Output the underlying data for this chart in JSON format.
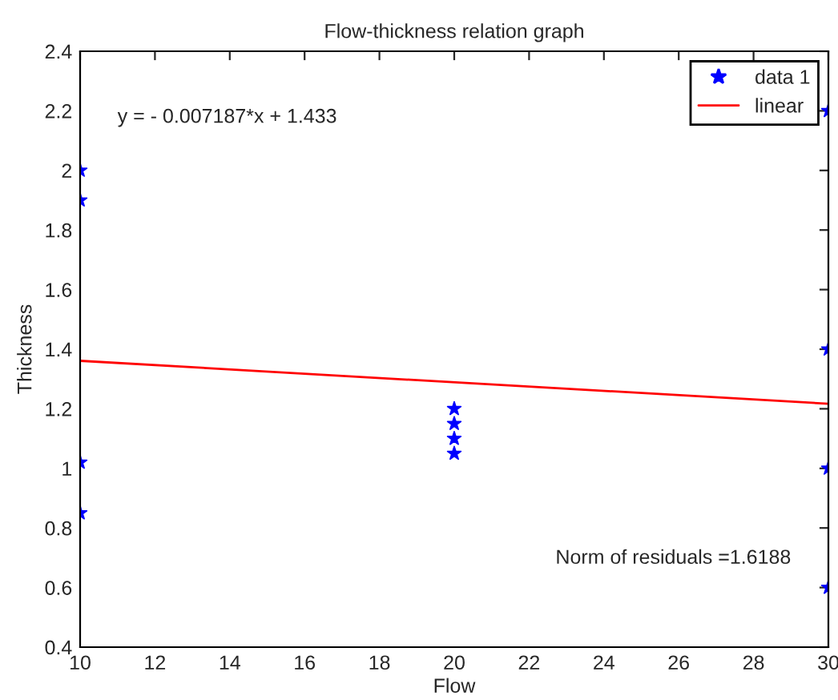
{
  "chart_data": {
    "type": "scatter",
    "title": "Flow-thickness relation graph",
    "xlabel": "Flow",
    "ylabel": "Thickness",
    "series": [
      {
        "name": "data 1",
        "color": "#0000ff",
        "marker": "star",
        "x": [
          10,
          10,
          10,
          10,
          20,
          20,
          20,
          20,
          30,
          30,
          30,
          30
        ],
        "values": [
          2.0,
          1.9,
          1.02,
          0.85,
          1.2,
          1.15,
          1.1,
          1.05,
          2.2,
          1.4,
          1.0,
          0.6
        ]
      },
      {
        "name": "linear",
        "type": "line",
        "color": "#ff0000",
        "marker": "none",
        "line_style": "solid",
        "x": [
          10,
          30
        ],
        "values": [
          1.361,
          1.217
        ]
      }
    ],
    "annotations": [
      "y = - 0.007187*x + 1.433",
      "Norm of residuals =1.6188"
    ],
    "xlim": [
      10,
      30
    ],
    "xticks": [
      10,
      12,
      14,
      16,
      18,
      20,
      22,
      24,
      26,
      28,
      30
    ],
    "ylim": [
      0.4,
      2.4
    ],
    "yticks": [
      0.4,
      0.6,
      0.8,
      1,
      1.2,
      1.4,
      1.6,
      1.8,
      2,
      2.2,
      2.4
    ],
    "grid": false,
    "legend": "top right"
  }
}
